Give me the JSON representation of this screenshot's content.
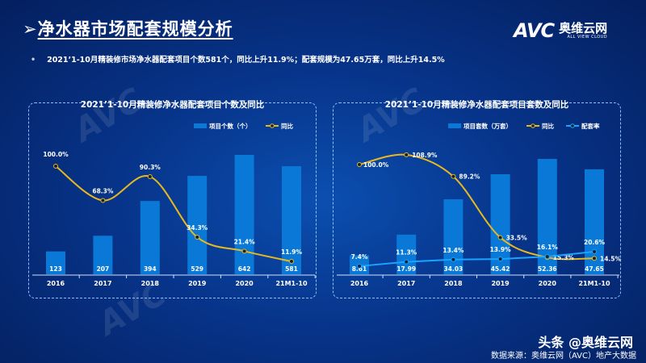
{
  "header": {
    "arrow": "➢",
    "title": "净水器市场配套规模分析",
    "logo_mark": "AVC",
    "logo_cn": "奥维云网",
    "logo_en": "ALL VIEW CLOUD"
  },
  "bullet": {
    "dot": "•",
    "text": "2021’1-10月精装修市场净水器配套项目个数581个，同比上升11.9%；配套规模为47.65万套，同比上升14.5%"
  },
  "chart_data": [
    {
      "type": "bar+line",
      "title": "2021’1-10月精装修净水器配套项目个数及同比",
      "categories": [
        "2016",
        "2017",
        "2018",
        "2019",
        "2020",
        "21M1-10"
      ],
      "series": [
        {
          "name": "项目个数（个）",
          "type": "bar",
          "color": "#0a78d6",
          "values": [
            123,
            207,
            394,
            529,
            642,
            581
          ],
          "labels": [
            "123",
            "207",
            "394",
            "529",
            "642",
            "581"
          ]
        },
        {
          "name": "同比",
          "type": "line",
          "color": "#e8b820",
          "values": [
            100.0,
            68.3,
            90.3,
            34.3,
            21.4,
            11.9
          ],
          "labels": [
            "100.0%",
            "68.3%",
            "90.3%",
            "34.3%",
            "21.4%",
            "11.9%"
          ]
        }
      ]
    },
    {
      "type": "bar+line",
      "title": "2021’1-10月精装修净水器配套项目套数及同比",
      "categories": [
        "2016",
        "2017",
        "2018",
        "2019",
        "2020",
        "21M1-10"
      ],
      "series": [
        {
          "name": "项目套数（万套）",
          "type": "bar",
          "color": "#0a78d6",
          "values": [
            8.61,
            17.99,
            34.03,
            45.42,
            52.36,
            47.65
          ],
          "labels": [
            "8.61",
            "17.99",
            "34.03",
            "45.42",
            "52.36",
            "47.65"
          ]
        },
        {
          "name": "同比",
          "type": "line",
          "color": "#e8b820",
          "values": [
            100.0,
            108.9,
            89.2,
            33.5,
            15.3,
            14.5
          ],
          "labels": [
            "100.0%",
            "108.9%",
            "89.2%",
            "33.5%",
            "15.3%",
            "14.5%"
          ]
        },
        {
          "name": "配套率",
          "type": "line",
          "color": "#1aa3ff",
          "values": [
            7.4,
            11.3,
            13.4,
            13.9,
            16.1,
            20.6
          ],
          "labels": [
            "7.4%",
            "11.3%",
            "13.4%",
            "13.9%",
            "16.1%",
            "20.6%"
          ]
        }
      ]
    }
  ],
  "footer": {
    "watermark": "头条 @奥维云网",
    "source": "数据来源：奥维云网（AVC）地产大数据"
  }
}
